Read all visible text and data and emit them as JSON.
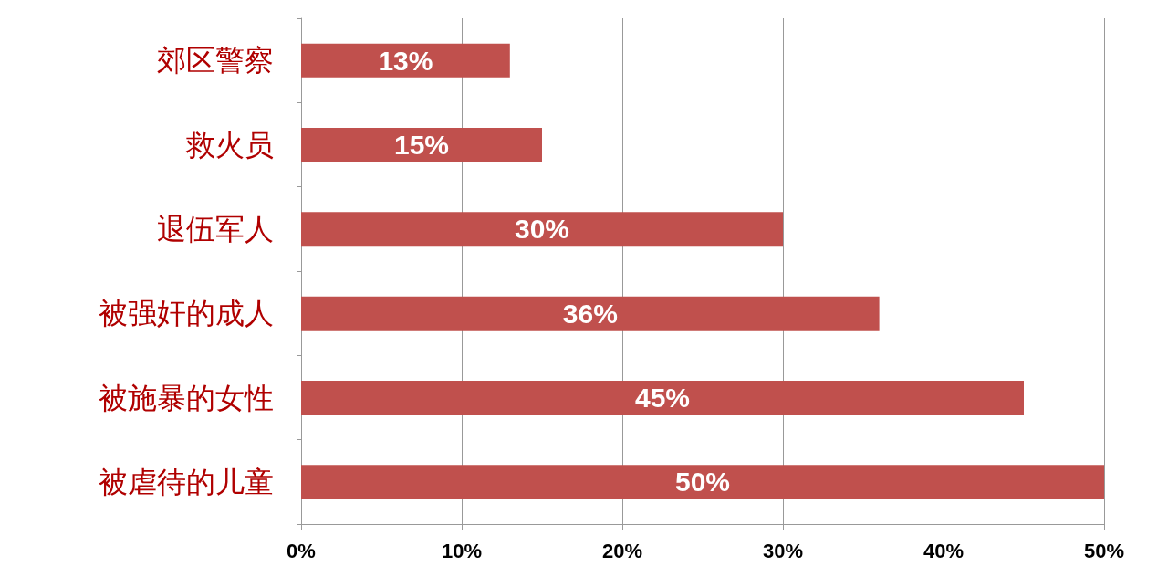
{
  "chart_data": {
    "type": "bar",
    "orientation": "horizontal",
    "categories": [
      "郊区警察",
      "救火员",
      "退伍军人",
      "被强奸的成人",
      "被施暴的女性",
      "被虐待的儿童"
    ],
    "values": [
      13,
      15,
      30,
      36,
      45,
      50
    ],
    "value_labels": [
      "13%",
      "15%",
      "30%",
      "36%",
      "45%",
      "50%"
    ],
    "color": "#c0504d",
    "xlim": [
      0,
      50
    ],
    "xticks": [
      {
        "value": 0,
        "label": "0%"
      },
      {
        "value": 10,
        "label": "10%"
      },
      {
        "value": 20,
        "label": "20%"
      },
      {
        "value": 30,
        "label": "30%"
      },
      {
        "value": 40,
        "label": "40%"
      },
      {
        "value": 50,
        "label": "50%"
      }
    ],
    "grid": "x"
  }
}
